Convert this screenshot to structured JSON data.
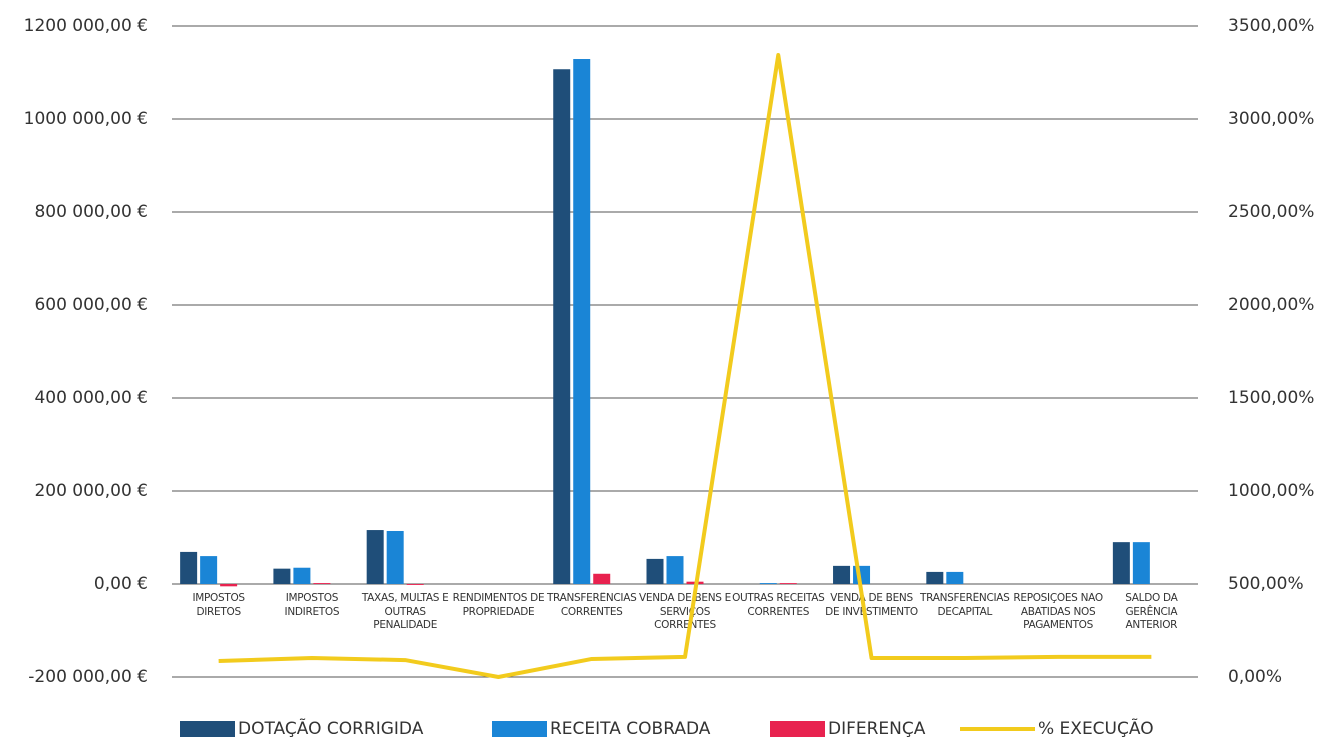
{
  "chart_data": {
    "type": "bar",
    "categories": [
      "IMPOSTOS DIRETOS",
      "IMPOSTOS INDIRETOS",
      "TAXAS, MULTAS E OUTRAS PENALIDADE",
      "RENDIMENTOS DE PROPRIEDADE",
      "TRANSFERÊNCIAS CORRENTES",
      "VENDA DE BENS E SERVIÇOS CORRENTES",
      "OUTRAS RECEITAS CORRENTES",
      "VENDA DE BENS DE INVESTIMENTO",
      "TRANSFERÊNCIAS DECAPITAL",
      "REPOSIÇÕES NÃO ABATIDAS NOS PAGAMENTOS",
      "SALDO DA GERÊNCIA ANTERIOR"
    ],
    "series": [
      {
        "name": "DOTAÇÃO CORRIGIDA",
        "color": "#1f4e79",
        "type": "bar",
        "values": [
          69000,
          33000,
          116000,
          0,
          1107000,
          54000,
          60,
          39000,
          26000,
          0,
          90000
        ]
      },
      {
        "name": "RECEITA COBRADA",
        "color": "#1a85d6",
        "type": "bar",
        "values": [
          60000,
          35000,
          114000,
          0,
          1129000,
          60000,
          2000,
          39000,
          26000,
          0,
          90000
        ]
      },
      {
        "name": "DIFERENÇA",
        "color": "#e8224f",
        "type": "bar",
        "values": [
          -5000,
          2000,
          -2000,
          0,
          22000,
          5000,
          1940,
          0,
          0,
          0,
          0
        ]
      },
      {
        "name": "% EXECUÇÃO",
        "color": "#f2cb1d",
        "type": "line",
        "axis": "y2",
        "values": [
          86,
          102,
          91,
          0,
          97,
          108,
          3344,
          102,
          102,
          108,
          108
        ]
      }
    ],
    "ylim": [
      -200000,
      1200000
    ],
    "yticks": [
      {
        "value": -200000,
        "label": "-200 000,00 €"
      },
      {
        "value": 0,
        "label": "0,00 €"
      },
      {
        "value": 200000,
        "label": "200 000,00 €"
      },
      {
        "value": 400000,
        "label": "400 000,00 €"
      },
      {
        "value": 600000,
        "label": "600 000,00 €"
      },
      {
        "value": 800000,
        "label": "800 000,00 €"
      },
      {
        "value": 1000000,
        "label": "1000 000,00 €"
      },
      {
        "value": 1200000,
        "label": "1200 000,00 €"
      }
    ],
    "y2lim": [
      0,
      3500
    ],
    "y2ticks": [
      {
        "value": 0,
        "label": "0,00%"
      },
      {
        "value": 500,
        "label": "500,00%"
      },
      {
        "value": 1000,
        "label": "1000,00%"
      },
      {
        "value": 1500,
        "label": "1500,00%"
      },
      {
        "value": 2000,
        "label": "2000,00%"
      },
      {
        "value": 2500,
        "label": "2500,00%"
      },
      {
        "value": 3000,
        "label": "3000,00%"
      },
      {
        "value": 3500,
        "label": "3500,00%"
      }
    ],
    "grid": true,
    "legend": "bottom"
  }
}
